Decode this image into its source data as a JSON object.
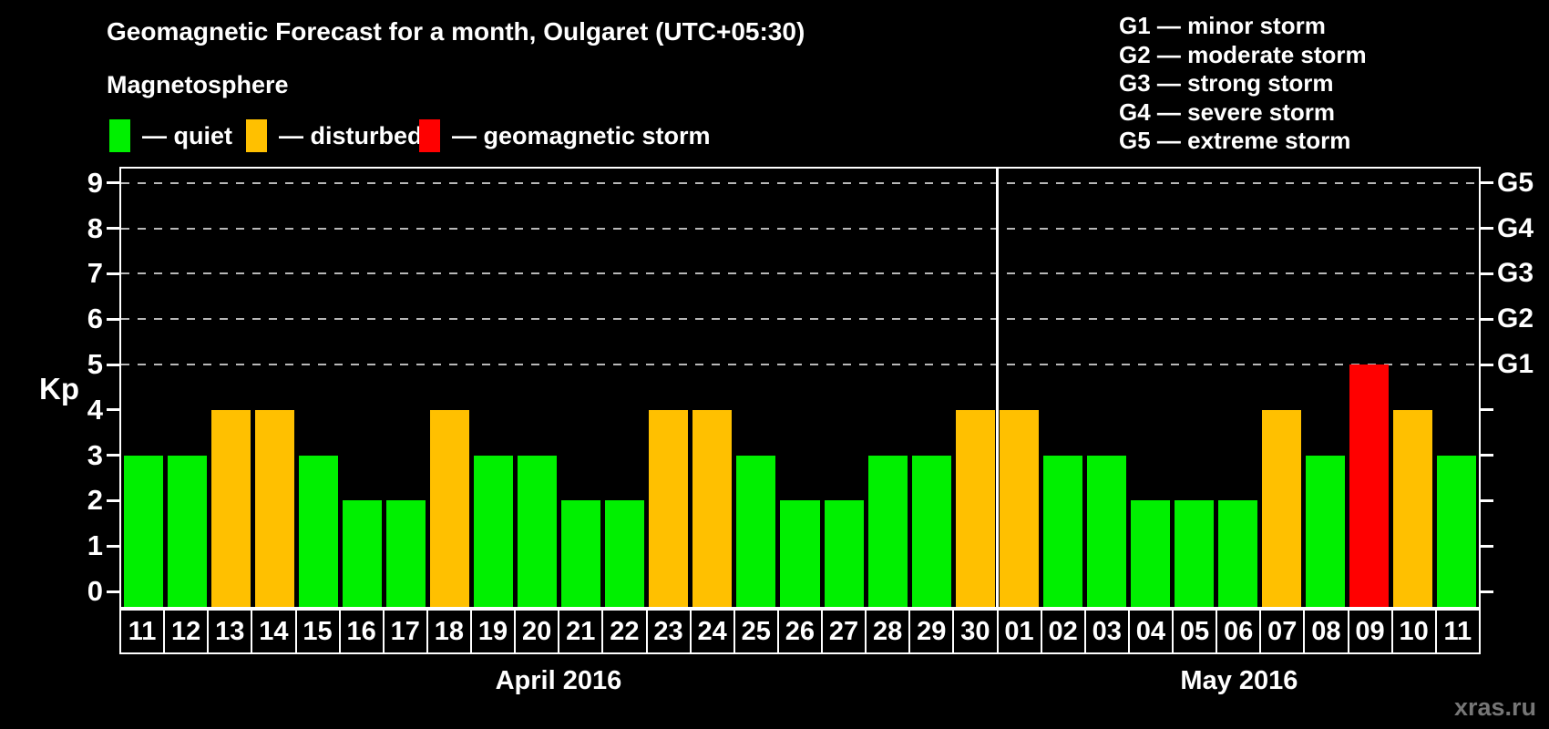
{
  "header": {
    "title": "Geomagnetic Forecast for a month, Oulgaret (UTC+05:30)",
    "subtitle": "Magnetosphere",
    "legend": [
      {
        "label": "— quiet",
        "status": "quiet",
        "color": "#00f000"
      },
      {
        "label": "— disturbed",
        "status": "disturbed",
        "color": "#ffc000"
      },
      {
        "label": "— geomagnetic storm",
        "status": "storm",
        "color": "#ff0000"
      }
    ],
    "g_legend": [
      "G1 — minor storm",
      "G2 — moderate storm",
      "G3 — strong storm",
      "G4 — severe storm",
      "G5 — extreme storm"
    ]
  },
  "chart_data": {
    "type": "bar",
    "title": "Geomagnetic Forecast for a month, Oulgaret (UTC+05:30)",
    "xlabel": "",
    "ylabel": "Kp",
    "ylim": [
      0,
      9
    ],
    "yticks": [
      0,
      1,
      2,
      3,
      4,
      5,
      6,
      7,
      8,
      9
    ],
    "grid_levels": [
      5,
      6,
      7,
      8,
      9
    ],
    "grid_on": true,
    "right_axis_labels": [
      {
        "level": 5,
        "label": "G1"
      },
      {
        "level": 6,
        "label": "G2"
      },
      {
        "level": 7,
        "label": "G3"
      },
      {
        "level": 8,
        "label": "G4"
      },
      {
        "level": 9,
        "label": "G5"
      }
    ],
    "months": [
      {
        "label": "April 2016",
        "days": 20
      },
      {
        "label": "May 2016",
        "days": 11
      }
    ],
    "categories": [
      "11",
      "12",
      "13",
      "14",
      "15",
      "16",
      "17",
      "18",
      "19",
      "20",
      "21",
      "22",
      "23",
      "24",
      "25",
      "26",
      "27",
      "28",
      "29",
      "30",
      "01",
      "02",
      "03",
      "04",
      "05",
      "06",
      "07",
      "08",
      "09",
      "10",
      "11"
    ],
    "values": [
      3,
      3,
      4,
      4,
      3,
      2,
      2,
      4,
      3,
      3,
      2,
      2,
      4,
      4,
      3,
      2,
      2,
      3,
      3,
      4,
      4,
      3,
      3,
      2,
      2,
      2,
      4,
      3,
      5,
      4,
      3
    ],
    "statuses": [
      "quiet",
      "quiet",
      "disturbed",
      "disturbed",
      "quiet",
      "quiet",
      "quiet",
      "disturbed",
      "quiet",
      "quiet",
      "quiet",
      "quiet",
      "disturbed",
      "disturbed",
      "quiet",
      "quiet",
      "quiet",
      "quiet",
      "quiet",
      "disturbed",
      "disturbed",
      "quiet",
      "quiet",
      "quiet",
      "quiet",
      "quiet",
      "disturbed",
      "quiet",
      "storm",
      "disturbed",
      "quiet"
    ],
    "colors": {
      "quiet": "#00f000",
      "disturbed": "#ffc000",
      "storm": "#ff0000"
    },
    "accent_colors": {
      "axis": "#ffffff",
      "grid": "#b8b8b8",
      "watermark": "#767676"
    }
  },
  "footer": {
    "watermark": "xras.ru"
  }
}
